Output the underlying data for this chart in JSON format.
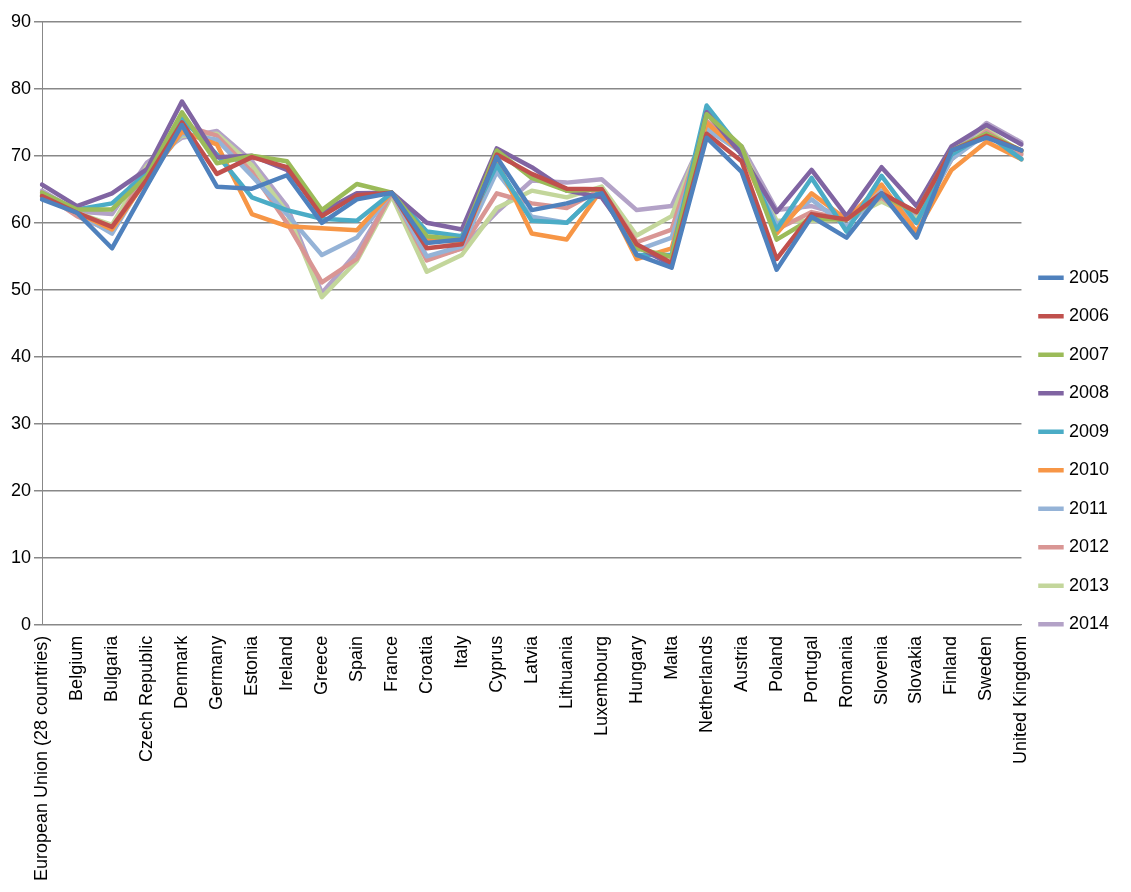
{
  "chart_data": {
    "type": "line",
    "categories": [
      "European Union (28 countries)",
      "Belgium",
      "Bulgaria",
      "Czech Republic",
      "Denmark",
      "Germany",
      "Estonia",
      "Ireland",
      "Greece",
      "Spain",
      "France",
      "Croatia",
      "Italy",
      "Cyprus",
      "Latvia",
      "Lithuania",
      "Luxembourg",
      "Hungary",
      "Malta",
      "Netherlands",
      "Austria",
      "Poland",
      "Portugal",
      "Romania",
      "Slovenia",
      "Slovakia",
      "Finland",
      "Sweden",
      "United Kingdom"
    ],
    "series": [
      {
        "name": "2005",
        "color": "#4f81bd",
        "values": [
          63.5,
          61.5,
          56.2,
          65.5,
          74.6,
          65.4,
          65.1,
          67.1,
          60,
          63.5,
          64.5,
          57,
          57.5,
          69.8,
          61.9,
          62.9,
          64.4,
          55.2,
          53.3,
          72.7,
          67.6,
          53,
          60.9,
          57.8,
          64.4,
          57.8,
          70.8,
          72.7,
          70.8
        ]
      },
      {
        "name": "2006",
        "color": "#c0504d",
        "values": [
          64,
          61.5,
          59.4,
          66.5,
          75,
          67.3,
          69.8,
          68.3,
          61,
          64.1,
          64.5,
          56.2,
          56.8,
          70.2,
          67.3,
          65.1,
          65,
          56.8,
          54,
          73.3,
          69.2,
          54.6,
          61.3,
          60.5,
          64.4,
          61.6,
          70.8,
          73,
          70.8
        ]
      },
      {
        "name": "2007",
        "color": "#9bbb59",
        "values": [
          64.5,
          62,
          62,
          67,
          76.5,
          68.9,
          70,
          69.2,
          61.9,
          65.8,
          64.5,
          58,
          57.5,
          70.8,
          66.7,
          64.8,
          65,
          56.2,
          54.9,
          76.2,
          71.4,
          57.5,
          60.6,
          60.5,
          64.1,
          61.6,
          70.8,
          73.3,
          70.8
        ]
      },
      {
        "name": "2008",
        "color": "#8064a2",
        "values": [
          65.7,
          62.5,
          64.4,
          68,
          78.1,
          69.8,
          70,
          67.9,
          61.6,
          64.4,
          64.5,
          60,
          59,
          71.1,
          68.3,
          64.8,
          63.8,
          56.5,
          53.7,
          76.5,
          70.2,
          61.6,
          67.9,
          61,
          68.3,
          62.5,
          71.4,
          74.6,
          71.7
        ]
      },
      {
        "name": "2009",
        "color": "#4bacc6",
        "values": [
          64,
          62,
          62.9,
          67.5,
          75.6,
          70.2,
          63.8,
          61.9,
          60.6,
          60.3,
          64.5,
          58.7,
          58,
          68.6,
          60.3,
          60,
          65,
          55.2,
          55.2,
          77.5,
          70.8,
          59,
          66.7,
          58.7,
          67,
          60,
          70.2,
          73.3,
          69.5
        ]
      },
      {
        "name": "2010",
        "color": "#f79646",
        "values": [
          64,
          61.5,
          59,
          66.5,
          73.6,
          71.7,
          61.3,
          59.5,
          59.2,
          58.9,
          64.5,
          57.5,
          57.1,
          69.2,
          58.4,
          57.5,
          65,
          54.6,
          56.2,
          74.9,
          70.5,
          58.4,
          64.4,
          60.5,
          65.7,
          58.7,
          67.9,
          72.1,
          69.5
        ]
      },
      {
        "name": "2011",
        "color": "#95b3d7",
        "values": [
          64,
          61.5,
          58.4,
          67,
          73.3,
          72.4,
          67,
          61.3,
          55.2,
          57.8,
          64.5,
          55,
          56.5,
          67.6,
          60.9,
          60,
          65,
          55.9,
          57.8,
          74,
          70.5,
          59.7,
          63.5,
          59.4,
          64.8,
          60,
          69.5,
          73.3,
          69.5
        ]
      },
      {
        "name": "2012",
        "color": "#d99694",
        "values": [
          64.5,
          61,
          58.7,
          68,
          74.6,
          73,
          67.6,
          60,
          51.1,
          54.6,
          64.5,
          54.4,
          56.2,
          64.4,
          62.9,
          62.2,
          65,
          57.1,
          59,
          75.2,
          71.1,
          59,
          61.6,
          60.5,
          63.8,
          60,
          69.5,
          73.7,
          70.2
        ]
      },
      {
        "name": "2013",
        "color": "#c3d69b",
        "values": [
          64.2,
          61.5,
          59.7,
          68.5,
          73,
          73.3,
          68.6,
          61.6,
          48.9,
          54.3,
          64,
          52.7,
          55.2,
          62.2,
          64.8,
          63.8,
          65.4,
          58.1,
          61,
          74.3,
          71.1,
          60.3,
          60.3,
          60.5,
          63.2,
          60.6,
          69.5,
          74,
          70.5
        ]
      },
      {
        "name": "2014",
        "color": "#b3a2c7",
        "values": [
          64.8,
          61.7,
          61.3,
          69,
          72.7,
          73.7,
          69.2,
          62.5,
          49.5,
          55.6,
          64.2,
          54.6,
          56.2,
          61.6,
          66.3,
          66,
          66.5,
          61.9,
          62.5,
          73.7,
          71.4,
          61.9,
          62.5,
          61,
          63.8,
          61,
          70.2,
          74.9,
          72
        ]
      }
    ],
    "ylim": [
      0,
      90
    ],
    "yticks": [
      0,
      10,
      20,
      30,
      40,
      50,
      60,
      70,
      80,
      90
    ],
    "grid": "y",
    "legend": "right",
    "marker": "none",
    "line_style": "solid"
  }
}
